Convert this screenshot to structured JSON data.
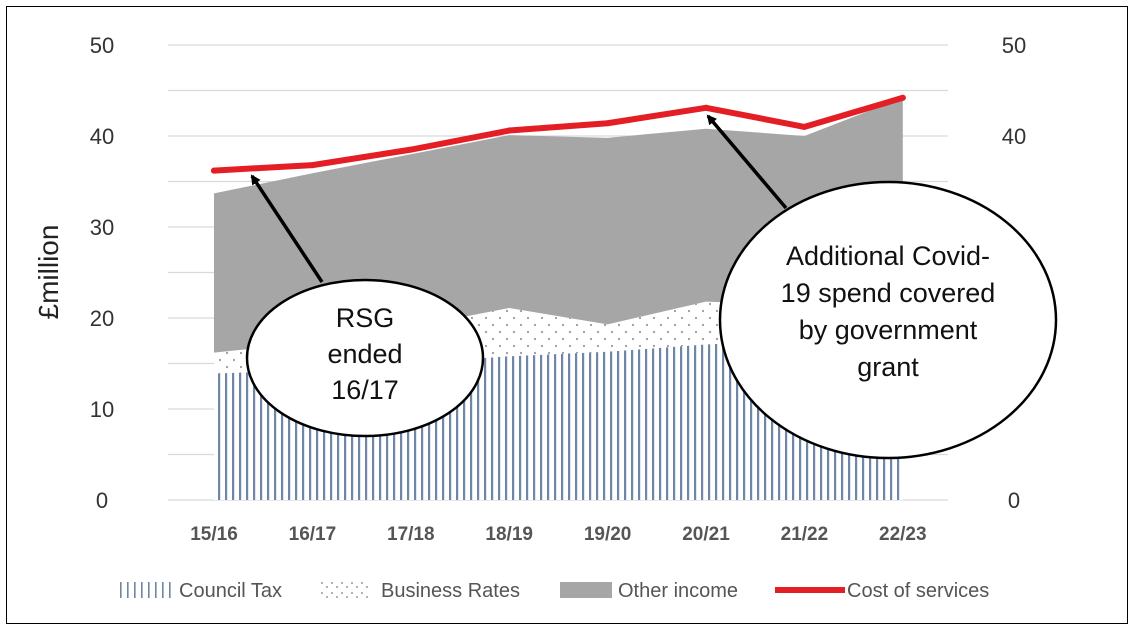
{
  "chart_data": {
    "type": "area",
    "categories": [
      "15/16",
      "16/17",
      "17/18",
      "18/19",
      "19/20",
      "20/21",
      "21/22",
      "22/23"
    ],
    "ylabel": "£million",
    "ylim": [
      0,
      50
    ],
    "yticks": [
      0,
      10,
      20,
      30,
      40,
      50
    ],
    "secondary_yticks": [
      0,
      40,
      50
    ],
    "grid": true,
    "legend_position": "bottom",
    "series": [
      {
        "name": "Council Tax",
        "kind": "stacked-area",
        "pattern": "vertical-lines",
        "color": "#6f86a6",
        "values": [
          13.9,
          14.3,
          15.0,
          15.8,
          16.3,
          17.1,
          17.6,
          18.5
        ]
      },
      {
        "name": "Business Rates",
        "kind": "stacked-area",
        "pattern": "dots",
        "color": "#b8b8b8",
        "values": [
          2.3,
          3.0,
          4.0,
          5.3,
          3.0,
          4.7,
          3.8,
          4.0
        ]
      },
      {
        "name": "Other income",
        "kind": "stacked-area",
        "pattern": "solid",
        "color": "#a6a6a6",
        "values": [
          17.5,
          18.6,
          19.0,
          19.0,
          20.5,
          19.0,
          18.6,
          21.7
        ]
      },
      {
        "name": "Cost of services",
        "kind": "line",
        "color": "#e31e24",
        "values": [
          36.2,
          36.8,
          38.5,
          40.6,
          41.4,
          43.1,
          41.0,
          44.2
        ]
      }
    ],
    "annotations": [
      {
        "lines": [
          "RSG",
          "ended",
          "16/17"
        ],
        "points_to": "15/16"
      },
      {
        "lines": [
          "Additional Covid-",
          "19 spend covered",
          "by government",
          "grant"
        ],
        "points_to": "20/21"
      }
    ]
  }
}
